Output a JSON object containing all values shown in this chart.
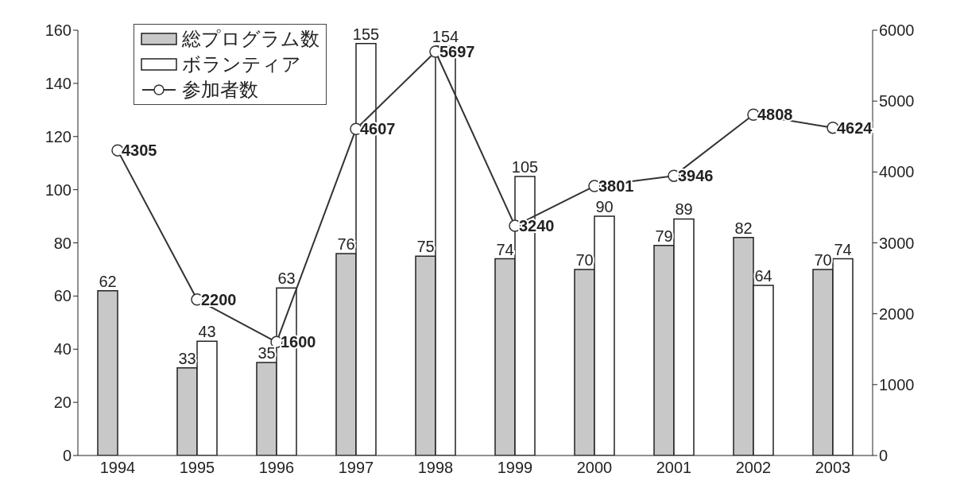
{
  "chart_data": {
    "type": "bar",
    "categories": [
      "1994",
      "1995",
      "1996",
      "1997",
      "1998",
      "1999",
      "2000",
      "2001",
      "2002",
      "2003"
    ],
    "series": [
      {
        "name": "総プログラム数",
        "color": "#c8c8c8",
        "values": [
          62,
          33,
          35,
          76,
          75,
          74,
          70,
          79,
          82,
          70
        ]
      },
      {
        "name": "ボランティア",
        "color": "#ffffff",
        "values": [
          null,
          43,
          63,
          155,
          154,
          105,
          90,
          89,
          64,
          74
        ]
      },
      {
        "name": "参加者数",
        "type": "line",
        "axis": "y2",
        "color": "#333333",
        "values": [
          4305,
          2200,
          1600,
          4607,
          5697,
          3240,
          3801,
          3946,
          4808,
          4624
        ]
      }
    ],
    "ylim": [
      0,
      160
    ],
    "yticks": [
      0,
      20,
      40,
      60,
      80,
      100,
      120,
      140,
      160
    ],
    "y2lim": [
      0,
      6000
    ],
    "y2ticks": [
      0,
      1000,
      2000,
      3000,
      4000,
      5000,
      6000
    ],
    "data_labels": true,
    "grid": false,
    "legend": "top left",
    "marker": "circle",
    "line_style": "solid"
  }
}
